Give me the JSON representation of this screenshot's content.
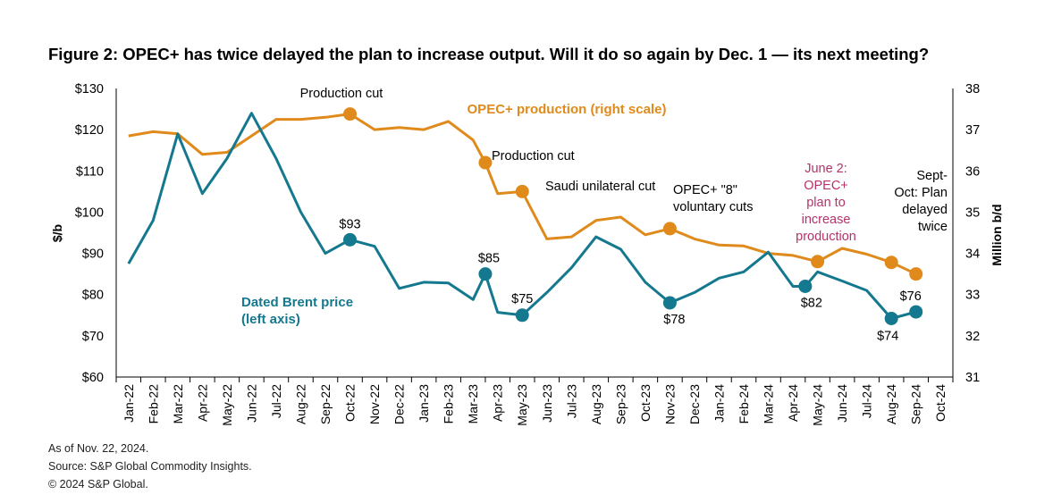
{
  "title": "Figure 2: OPEC+ has twice delayed the plan to increase output. Will it do so again by Dec. 1 — its next meeting?",
  "footer": {
    "as_of": "As of Nov. 22, 2024.",
    "source": "Source: S&P Global Commodity Insights.",
    "copyright": "© 2024 S&P Global."
  },
  "colors": {
    "brent": "#14788f",
    "opec": "#e08a1c",
    "june_note": "#b5326a",
    "axis": "#000000"
  },
  "chart_data": {
    "type": "line",
    "x_labels": [
      "Jan-22",
      "Feb-22",
      "Mar-22",
      "Apr-22",
      "May-22",
      "Jun-22",
      "Jul-22",
      "Aug-22",
      "Sep-22",
      "Oct-22",
      "Nov-22",
      "Dec-22",
      "Jan-23",
      "Feb-23",
      "Mar-23",
      "Apr-23",
      "May-23",
      "Jun-23",
      "Jul-23",
      "Aug-23",
      "Sep-23",
      "Oct-23",
      "Nov-23",
      "Dec-23",
      "Jan-24",
      "Feb-24",
      "Mar-24",
      "Apr-24",
      "May-24",
      "Jun-24",
      "Jul-24",
      "Aug-24",
      "Sep-24",
      "Oct-24"
    ],
    "left_axis": {
      "label": "$/b",
      "min": 60,
      "max": 130,
      "ticks": [
        "$60",
        "$70",
        "$80",
        "$90",
        "$100",
        "$110",
        "$120",
        "$130"
      ]
    },
    "right_axis": {
      "label": "Million b/d",
      "min": 31,
      "max": 38,
      "ticks": [
        "31",
        "32",
        "33",
        "34",
        "35",
        "36",
        "37",
        "38"
      ]
    },
    "brent": {
      "name": "Dated Brent price (left axis)",
      "name_lines": [
        "Dated Brent price",
        "(left axis)"
      ],
      "points": [
        [
          1,
          87.5
        ],
        [
          2,
          98
        ],
        [
          3,
          119
        ],
        [
          4,
          104.5
        ],
        [
          5,
          113
        ],
        [
          6,
          124
        ],
        [
          7,
          113
        ],
        [
          8,
          100
        ],
        [
          9,
          90
        ],
        [
          10,
          93.3
        ],
        [
          11,
          91.7
        ],
        [
          12,
          81.5
        ],
        [
          13,
          83
        ],
        [
          14,
          82.8
        ],
        [
          15,
          78.8
        ],
        [
          15.5,
          85
        ],
        [
          16,
          75.7
        ],
        [
          17,
          75
        ],
        [
          18,
          80.5
        ],
        [
          19,
          86.5
        ],
        [
          20,
          94
        ],
        [
          21,
          91
        ],
        [
          22,
          83
        ],
        [
          22.5,
          80.5
        ],
        [
          23,
          78
        ],
        [
          24,
          80.5
        ],
        [
          25,
          84
        ],
        [
          26,
          85.5
        ],
        [
          27,
          90.3
        ],
        [
          28,
          82
        ],
        [
          28.5,
          82
        ],
        [
          29,
          85.5
        ],
        [
          30,
          83.3
        ],
        [
          31,
          81
        ],
        [
          32,
          74.2
        ],
        [
          33,
          75.8
        ]
      ],
      "markers": [
        {
          "x": 10,
          "y": 93.3,
          "label": "$93"
        },
        {
          "x": 15.5,
          "y": 85,
          "label": "$85"
        },
        {
          "x": 17,
          "y": 75,
          "label": "$75"
        },
        {
          "x": 23,
          "y": 78,
          "label": "$78"
        },
        {
          "x": 28.5,
          "y": 82,
          "label": "$82"
        },
        {
          "x": 32,
          "y": 74.2,
          "label": "$74"
        },
        {
          "x": 33,
          "y": 75.8,
          "label": "$76"
        }
      ]
    },
    "opec": {
      "name": "OPEC+ production (right scale)",
      "points": [
        [
          1,
          36.85
        ],
        [
          2,
          36.95
        ],
        [
          3,
          36.9
        ],
        [
          4,
          36.4
        ],
        [
          5,
          36.45
        ],
        [
          6,
          36.85
        ],
        [
          7,
          37.25
        ],
        [
          8,
          37.25
        ],
        [
          9,
          37.3
        ],
        [
          10,
          37.38
        ],
        [
          11,
          37
        ],
        [
          12,
          37.05
        ],
        [
          13,
          37
        ],
        [
          14,
          37.2
        ],
        [
          15,
          36.75
        ],
        [
          15.5,
          36.2
        ],
        [
          16,
          35.45
        ],
        [
          17,
          35.5
        ],
        [
          18,
          34.35
        ],
        [
          19,
          34.4
        ],
        [
          20,
          34.8
        ],
        [
          21,
          34.88
        ],
        [
          22,
          34.45
        ],
        [
          23,
          34.6
        ],
        [
          24,
          34.35
        ],
        [
          25,
          34.2
        ],
        [
          26,
          34.18
        ],
        [
          27,
          34
        ],
        [
          28,
          33.95
        ],
        [
          29,
          33.8
        ],
        [
          30,
          34.12
        ],
        [
          31,
          33.98
        ],
        [
          32,
          33.78
        ],
        [
          33,
          33.5
        ]
      ],
      "markers": [
        {
          "x": 10,
          "y": 37.38
        },
        {
          "x": 15.5,
          "y": 36.2
        },
        {
          "x": 17,
          "y": 35.5
        },
        {
          "x": 23,
          "y": 34.6
        },
        {
          "x": 29,
          "y": 33.8
        },
        {
          "x": 32,
          "y": 33.78
        },
        {
          "x": 33,
          "y": 33.5
        }
      ]
    },
    "annotations": {
      "production_cut_1": "Production cut",
      "production_cut_2": "Production cut",
      "saudi_cut": "Saudi unilateral cut",
      "voluntary_cuts": [
        "OPEC+ \"8\"",
        "voluntary cuts"
      ],
      "june_2": [
        "June 2:",
        "OPEC+",
        "plan to",
        "increase",
        "production"
      ],
      "sept_oct": [
        "Sept-",
        "Oct: Plan",
        "delayed",
        "twice"
      ]
    }
  }
}
